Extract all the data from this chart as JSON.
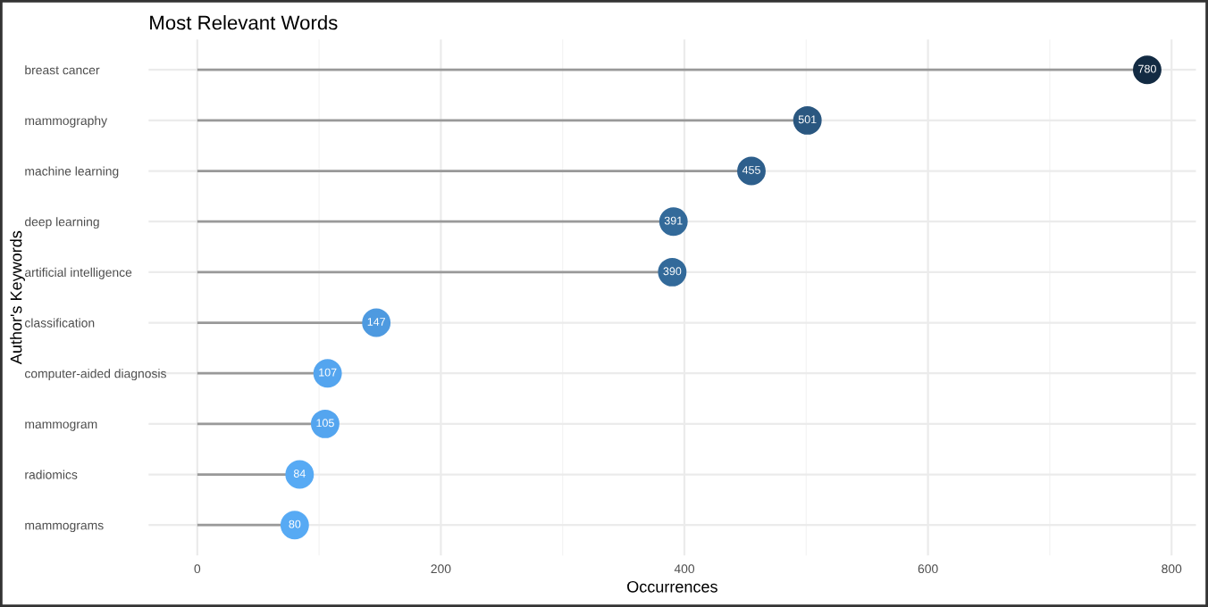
{
  "chart_data": {
    "type": "lollipop",
    "title": "Most Relevant Words",
    "xlabel": "Occurrences",
    "ylabel": "Author's Keywords",
    "orientation": "horizontal",
    "categories": [
      "breast cancer",
      "mammography",
      "machine learning",
      "deep learning",
      "artificial intelligence",
      "classification",
      "computer-aided diagnosis",
      "mammogram",
      "radiomics",
      "mammograms"
    ],
    "values": [
      780,
      501,
      455,
      391,
      390,
      147,
      107,
      105,
      84,
      80
    ],
    "colors": [
      "#132b43",
      "#2a5780",
      "#2e5f8c",
      "#336a9a",
      "#336a9a",
      "#4e9ae0",
      "#54a5ef",
      "#54a5ef",
      "#57aaf4",
      "#57aaf4"
    ],
    "xlim": [
      -40,
      820
    ],
    "xticks": [
      0,
      200,
      400,
      600,
      800
    ],
    "grid": true,
    "data_labels": true
  }
}
